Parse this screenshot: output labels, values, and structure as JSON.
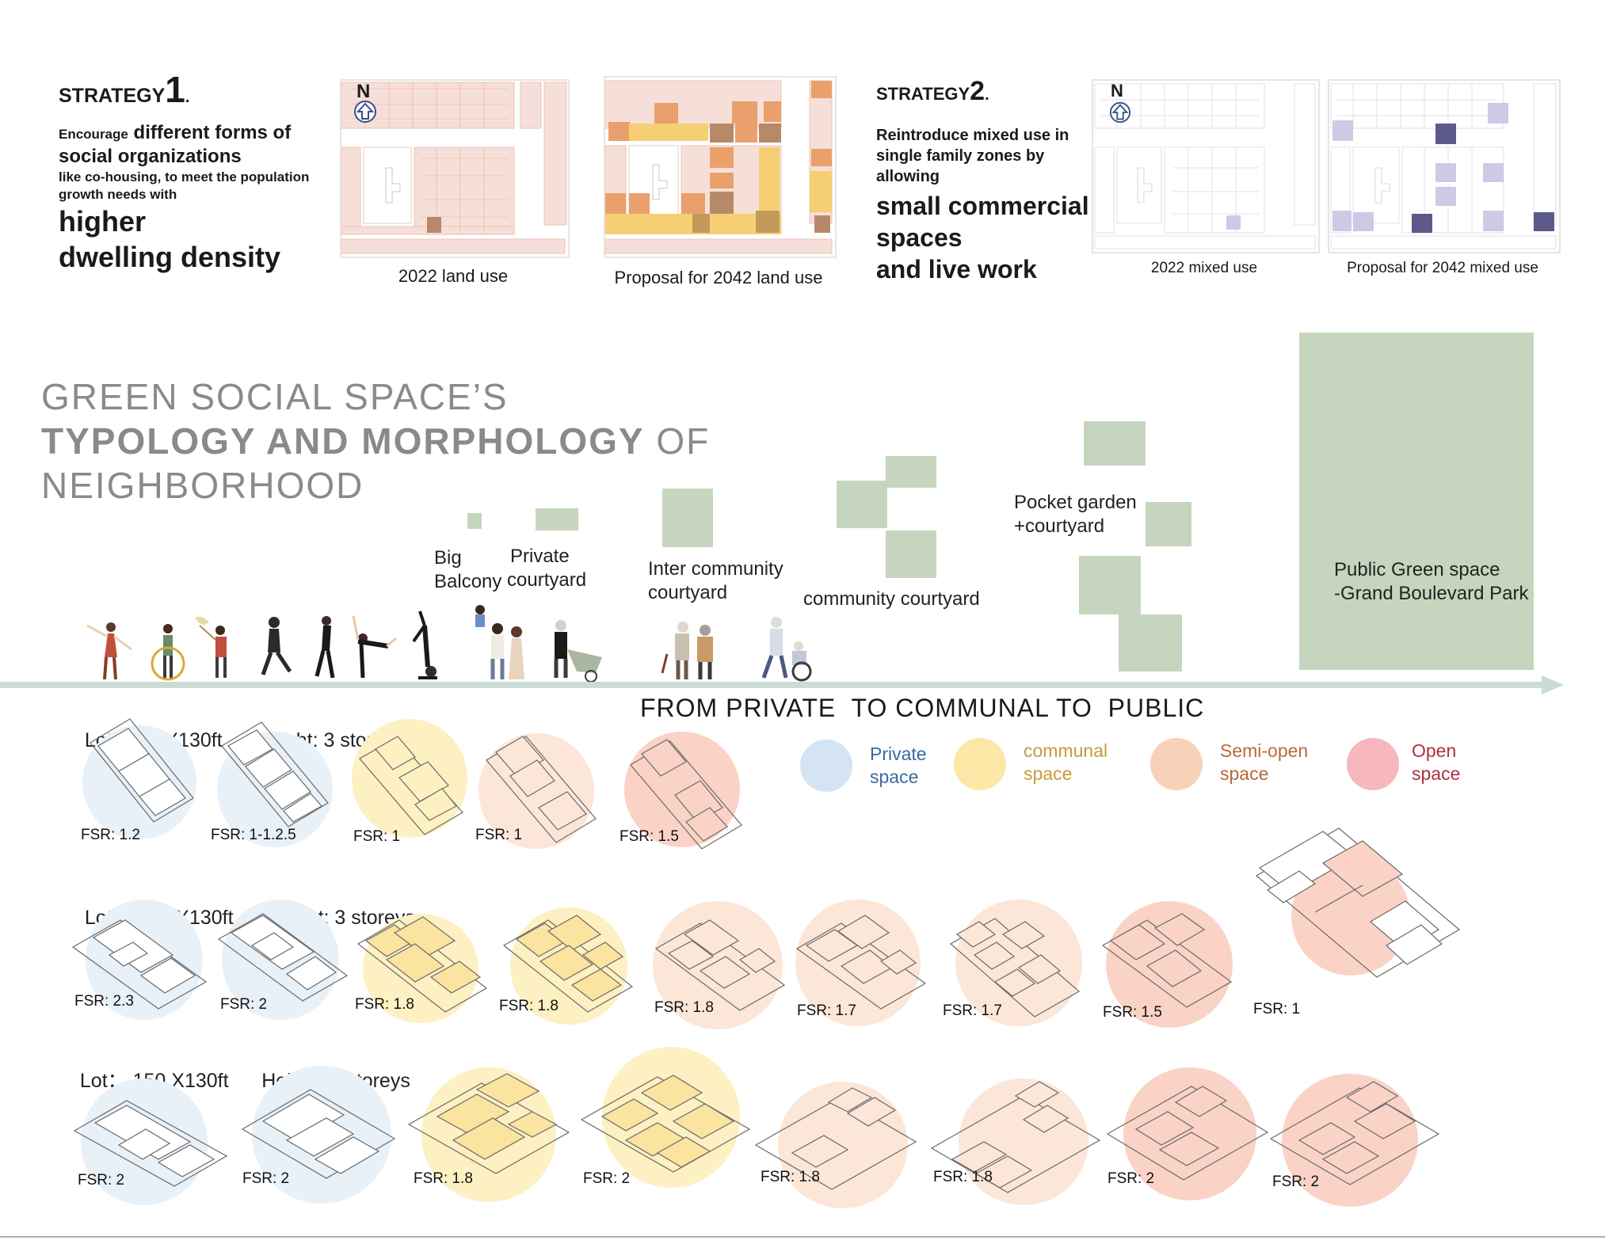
{
  "strategy1": {
    "label": "STRATEGY",
    "number": "1",
    "dot": ".",
    "line_a_small": "Encourage",
    "line_a_big": "different forms of",
    "line_b": "social organizations",
    "line_c": "like co-housing, to meet the population",
    "line_d": "growth needs with",
    "line_e": "higher",
    "line_f": "dwelling density"
  },
  "strategy2": {
    "label": "STRATEGY",
    "number": "2",
    "dot": ".",
    "line_a": "Reintroduce mixed use in",
    "line_b": "single family zones by",
    "line_c": "allowing",
    "line_d": "small commercial",
    "line_e": "spaces",
    "line_f": "and live work"
  },
  "maps": {
    "north": "N",
    "cap_2022_land": "2022 land use",
    "cap_2042_land": "Proposal for 2042 land use",
    "cap_2022_mixed": "2022 mixed use",
    "cap_2042_mixed": "Proposal for 2042 mixed use"
  },
  "title": {
    "line1": "GREEN SOCIAL SPACE’S",
    "line2_bold": "TYPOLOGY AND MORPHOLOGY",
    "line2_rest": " OF",
    "line3": "NEIGHBORHOOD"
  },
  "spaces": {
    "big_balcony_1": "Big",
    "big_balcony_2": "Balcony",
    "private_courtyard_1": "Private",
    "private_courtyard_2": "courtyard",
    "inter_community_1": "Inter community",
    "inter_community_2": "courtyard",
    "community": "community courtyard",
    "pocket_1": "Pocket garden",
    "pocket_2": "+courtyard",
    "public_1": "Public Green space",
    "public_2": "-Grand Boulevard Park"
  },
  "axis_text": "FROM PRIVATE  TO COMMUNAL TO  PUBLIC",
  "legend": [
    {
      "line1": "Private",
      "line2": "space",
      "color": "#d4e4f2",
      "text_color": "#3a6aa0"
    },
    {
      "line1": "communal",
      "line2": "space",
      "color": "#fbe7a6",
      "text_color": "#c79a3a"
    },
    {
      "line1": "Semi-open",
      "line2": "space",
      "color": "#f7d1b8",
      "text_color": "#b66a3a"
    },
    {
      "line1": "Open",
      "line2": "space",
      "color": "#f6b7bd",
      "text_color": "#b03040"
    }
  ],
  "rows": [
    {
      "lot_label": "Lot：",
      "lot_value": "50 X130ft",
      "height_label": "Height: 3 storeys",
      "fsr": [
        "FSR: 1.2",
        "FSR: 1-1.2.5",
        "FSR: 1",
        "FSR: 1",
        "FSR: 1.5"
      ]
    },
    {
      "lot_label": "Lot：",
      "lot_value": "100 X130ft",
      "height_label": "Height: 3 storeys",
      "fsr": [
        "FSR: 2.3",
        "FSR: 2",
        "FSR: 1.8",
        "FSR: 1.8",
        "FSR: 1.8",
        "FSR: 1.7",
        "FSR: 1.7",
        "FSR: 1.5",
        "FSR: 1"
      ]
    },
    {
      "lot_label": "Lot：",
      "lot_value": "150 X130ft",
      "height_label": "Height: 3 storeys",
      "fsr": [
        "FSR: 2",
        "FSR: 2",
        "FSR: 1.8",
        "FSR: 2",
        "FSR: 1.8",
        "FSR: 1.8",
        "FSR: 2",
        "FSR: 2"
      ]
    }
  ],
  "colors": {
    "private": "#e4eef8",
    "communal": "#fdf0c2",
    "semi_open": "#fce6d8",
    "open": "#fad3c6",
    "green": "#c6d6be",
    "axis": "#cbdbd6",
    "land_pink": "#f6dfd8",
    "mixed_purple": "#cfc9e6",
    "mixed_dark": "#5d5a8a"
  }
}
